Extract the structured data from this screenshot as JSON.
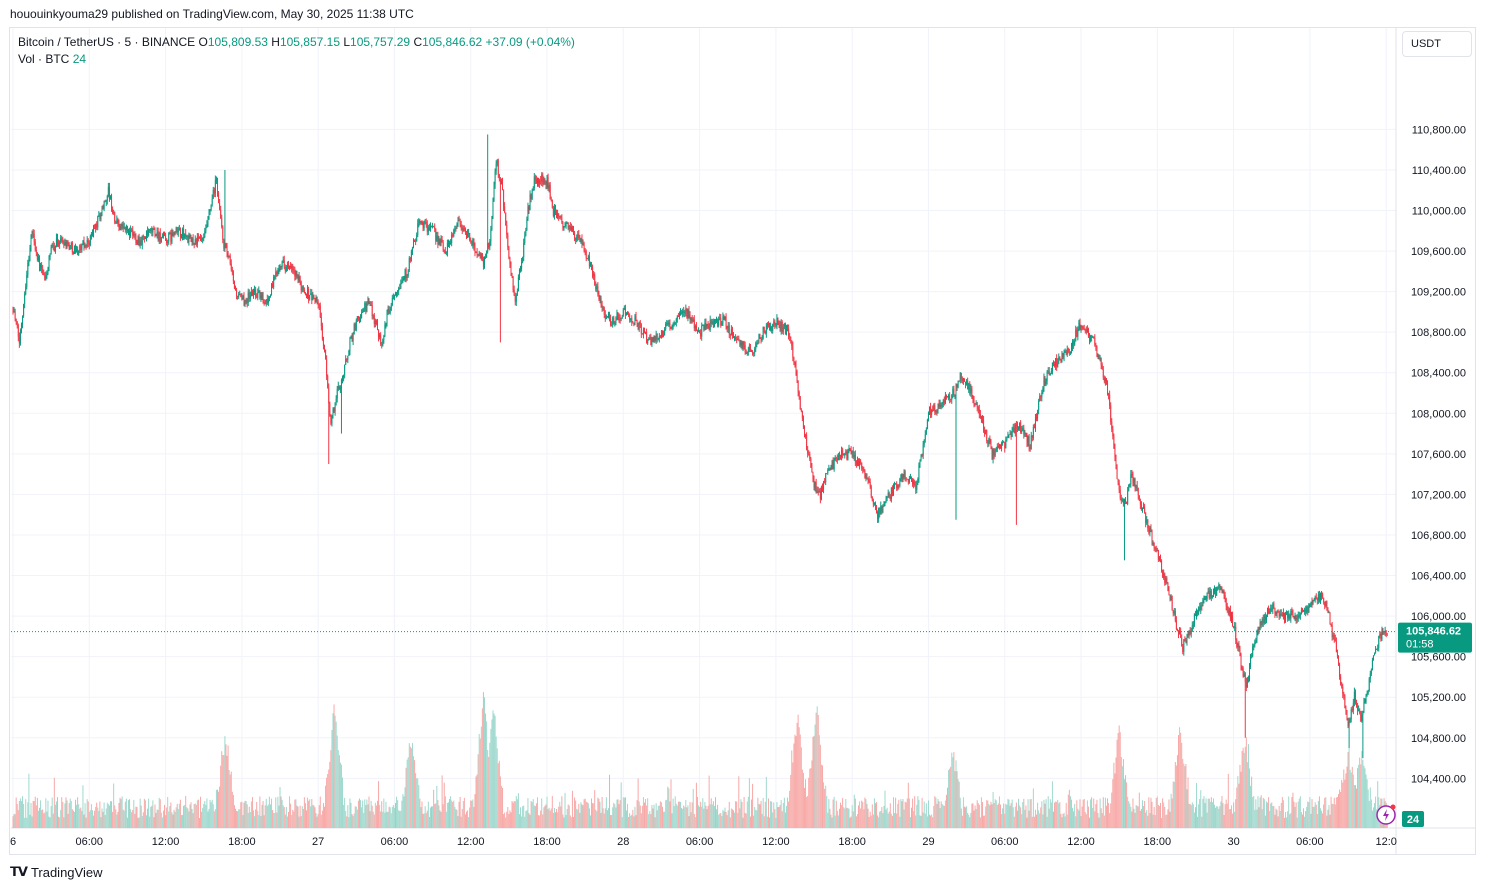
{
  "header": {
    "published": "hououinkyouma29 published on TradingView.com, May 30, 2025 11:38 UTC"
  },
  "legend": {
    "symbol": "Bitcoin / TetherUS · 5 · BINANCE",
    "o_label": "O",
    "o_value": "105,809.53",
    "h_label": "H",
    "h_value": "105,857.15",
    "l_label": "L",
    "l_value": "105,757.29",
    "c_label": "C",
    "c_value": "105,846.62",
    "change": "+37.09 (+0.04%)",
    "vol_label": "Vol · BTC",
    "vol_value": "24"
  },
  "currency_button": "USDT",
  "last_price": {
    "value": "105,846.62",
    "countdown": "01:58",
    "vol_badge": "24"
  },
  "footer": {
    "brand": "TradingView"
  },
  "colors": {
    "up": "#089981",
    "down": "#f23645",
    "up_vol": "#9fd9ce",
    "down_vol": "#f7a9a7",
    "badge": "#089981"
  },
  "chart_data": {
    "type": "candlestick",
    "symbol": "Bitcoin / TetherUS",
    "interval": "5",
    "exchange": "BINANCE",
    "y_ticks": [
      104400,
      104800,
      105200,
      105600,
      106000,
      106400,
      106800,
      107200,
      107600,
      108000,
      108400,
      108800,
      109200,
      109600,
      110000,
      110400,
      110800
    ],
    "y_tick_labels": [
      "104,400.00",
      "104,800.00",
      "105,200.00",
      "105,600.00",
      "106,000.00",
      "106,400.00",
      "106,800.00",
      "107,200.00",
      "107,600.00",
      "108,000.00",
      "108,400.00",
      "108,800.00",
      "109,200.00",
      "109,600.00",
      "110,000.00",
      "110,400.00",
      "110,800.00"
    ],
    "ylim": [
      103910,
      111800
    ],
    "x_ticks": [
      "6",
      "06:00",
      "12:00",
      "18:00",
      "27",
      "06:00",
      "12:00",
      "18:00",
      "28",
      "06:00",
      "12:00",
      "18:00",
      "29",
      "06:00",
      "12:00",
      "18:00",
      "30",
      "06:00",
      "12:0"
    ],
    "x_tick_hours": [
      0,
      6,
      12,
      18,
      24,
      30,
      36,
      42,
      48,
      54,
      60,
      66,
      72,
      78,
      84,
      90,
      96,
      102,
      108
    ],
    "x_range_hours": [
      0,
      108.3
    ],
    "price_path": [
      [
        0.0,
        109050
      ],
      [
        0.5,
        108700
      ],
      [
        1.0,
        109300
      ],
      [
        1.5,
        109800
      ],
      [
        2.0,
        109500
      ],
      [
        2.5,
        109300
      ],
      [
        3.0,
        109600
      ],
      [
        3.5,
        109700
      ],
      [
        4.0,
        109700
      ],
      [
        5.0,
        109600
      ],
      [
        6.0,
        109700
      ],
      [
        7.0,
        110000
      ],
      [
        7.5,
        110200
      ],
      [
        8.0,
        109900
      ],
      [
        9.0,
        109800
      ],
      [
        10.0,
        109700
      ],
      [
        11.0,
        109800
      ],
      [
        12.0,
        109700
      ],
      [
        13.0,
        109800
      ],
      [
        14.0,
        109700
      ],
      [
        15.0,
        109700
      ],
      [
        15.5,
        110000
      ],
      [
        16.0,
        110300
      ],
      [
        16.5,
        109700
      ],
      [
        17.0,
        109500
      ],
      [
        17.5,
        109200
      ],
      [
        18.0,
        109100
      ],
      [
        19.0,
        109200
      ],
      [
        20.0,
        109100
      ],
      [
        21.0,
        109500
      ],
      [
        22.0,
        109400
      ],
      [
        23.0,
        109200
      ],
      [
        24.0,
        109100
      ],
      [
        24.5,
        108600
      ],
      [
        25.0,
        107900
      ],
      [
        25.5,
        108200
      ],
      [
        26.0,
        108400
      ],
      [
        26.5,
        108700
      ],
      [
        27.0,
        108900
      ],
      [
        28.0,
        109100
      ],
      [
        29.0,
        108700
      ],
      [
        29.5,
        109000
      ],
      [
        30.0,
        109200
      ],
      [
        31.0,
        109400
      ],
      [
        32.0,
        109900
      ],
      [
        33.0,
        109800
      ],
      [
        34.0,
        109600
      ],
      [
        35.0,
        109900
      ],
      [
        36.0,
        109700
      ],
      [
        37.0,
        109500
      ],
      [
        37.5,
        109700
      ],
      [
        38.0,
        110500
      ],
      [
        38.5,
        110200
      ],
      [
        39.0,
        109500
      ],
      [
        39.5,
        109100
      ],
      [
        40.0,
        109500
      ],
      [
        40.5,
        110000
      ],
      [
        41.0,
        110300
      ],
      [
        42.0,
        110300
      ],
      [
        42.5,
        110000
      ],
      [
        43.0,
        109900
      ],
      [
        44.0,
        109800
      ],
      [
        45.0,
        109600
      ],
      [
        46.0,
        109200
      ],
      [
        46.5,
        109000
      ],
      [
        47.0,
        108900
      ],
      [
        48.0,
        109000
      ],
      [
        49.0,
        108900
      ],
      [
        50.0,
        108700
      ],
      [
        51.0,
        108800
      ],
      [
        52.0,
        108900
      ],
      [
        53.0,
        109000
      ],
      [
        54.0,
        108800
      ],
      [
        55.0,
        108900
      ],
      [
        56.0,
        108900
      ],
      [
        57.0,
        108700
      ],
      [
        58.0,
        108600
      ],
      [
        59.0,
        108800
      ],
      [
        60.0,
        108900
      ],
      [
        61.0,
        108800
      ],
      [
        61.5,
        108500
      ],
      [
        62.0,
        108000
      ],
      [
        62.5,
        107600
      ],
      [
        63.0,
        107300
      ],
      [
        63.5,
        107200
      ],
      [
        64.0,
        107400
      ],
      [
        65.0,
        107600
      ],
      [
        66.0,
        107600
      ],
      [
        67.0,
        107400
      ],
      [
        68.0,
        107000
      ],
      [
        69.0,
        107200
      ],
      [
        70.0,
        107400
      ],
      [
        71.0,
        107300
      ],
      [
        71.5,
        107600
      ],
      [
        72.0,
        108000
      ],
      [
        73.0,
        108100
      ],
      [
        74.0,
        108200
      ],
      [
        74.5,
        108400
      ],
      [
        75.0,
        108300
      ],
      [
        76.0,
        108000
      ],
      [
        77.0,
        107600
      ],
      [
        78.0,
        107700
      ],
      [
        79.0,
        107900
      ],
      [
        80.0,
        107700
      ],
      [
        81.0,
        108300
      ],
      [
        82.0,
        108500
      ],
      [
        83.0,
        108600
      ],
      [
        84.0,
        108900
      ],
      [
        85.0,
        108700
      ],
      [
        85.5,
        108500
      ],
      [
        86.0,
        108300
      ],
      [
        86.5,
        107800
      ],
      [
        87.0,
        107200
      ],
      [
        87.5,
        107100
      ],
      [
        88.0,
        107400
      ],
      [
        89.0,
        107000
      ],
      [
        90.0,
        106600
      ],
      [
        90.5,
        106400
      ],
      [
        91.0,
        106200
      ],
      [
        91.5,
        105900
      ],
      [
        92.0,
        105700
      ],
      [
        93.0,
        106000
      ],
      [
        94.0,
        106200
      ],
      [
        95.0,
        106300
      ],
      [
        96.0,
        105900
      ],
      [
        96.5,
        105600
      ],
      [
        97.0,
        105300
      ],
      [
        97.5,
        105700
      ],
      [
        98.0,
        105900
      ],
      [
        99.0,
        106100
      ],
      [
        100.0,
        106000
      ],
      [
        101.0,
        106000
      ],
      [
        102.0,
        106100
      ],
      [
        103.0,
        106200
      ],
      [
        103.5,
        106000
      ],
      [
        104.0,
        105700
      ],
      [
        104.5,
        105300
      ],
      [
        105.0,
        104900
      ],
      [
        105.5,
        105200
      ],
      [
        106.0,
        105000
      ],
      [
        106.5,
        105200
      ],
      [
        107.0,
        105600
      ],
      [
        107.5,
        105800
      ],
      [
        108.0,
        105850
      ]
    ],
    "wicks": [
      {
        "h": 24.8,
        "low": 107500
      },
      {
        "h": 25.8,
        "low": 107800
      },
      {
        "h": 37.3,
        "high": 110750
      },
      {
        "h": 38.3,
        "low": 108700
      },
      {
        "h": 16.7,
        "high": 110400
      },
      {
        "h": 74.2,
        "low": 106950
      },
      {
        "h": 78.9,
        "low": 106900
      },
      {
        "h": 87.4,
        "low": 106550
      },
      {
        "h": 96.9,
        "low": 104800
      },
      {
        "h": 105.1,
        "low": 104700
      },
      {
        "h": 106.2,
        "low": 104600
      }
    ],
    "volume_unit": "BTC",
    "volume_spikes": [
      [
        16.7,
        70
      ],
      [
        25.3,
        100
      ],
      [
        37.0,
        115
      ],
      [
        37.8,
        100
      ],
      [
        31.3,
        65
      ],
      [
        61.7,
        90
      ],
      [
        63.2,
        100
      ],
      [
        73.9,
        55
      ],
      [
        87.0,
        75
      ],
      [
        91.8,
        75
      ],
      [
        96.9,
        70
      ],
      [
        105.0,
        55
      ],
      [
        106.1,
        50
      ]
    ],
    "last_price": 105846.62
  }
}
